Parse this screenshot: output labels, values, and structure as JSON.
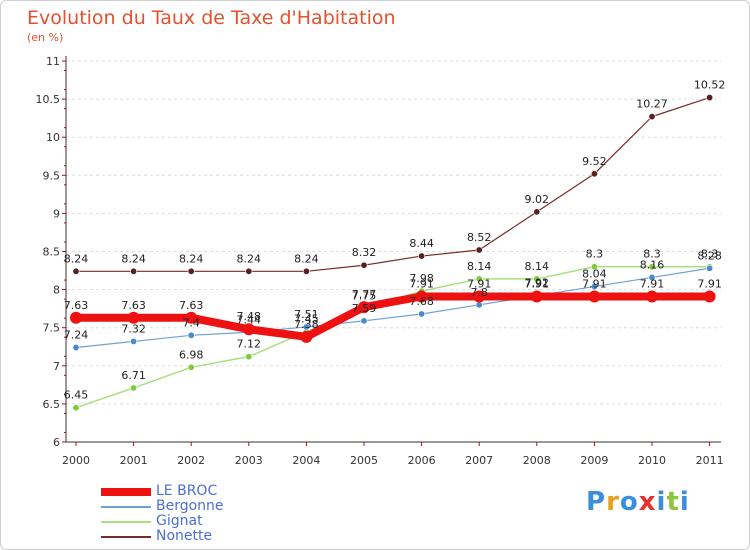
{
  "header": {
    "title": "Evolution du Taux de Taxe d'Habitation",
    "unit": "(en %)"
  },
  "logo": {
    "text": "Proxiti",
    "letters": [
      "P",
      "r",
      "o",
      "x",
      "i",
      "t",
      "i"
    ],
    "colors": [
      "#3a8fd8",
      "#e8a020",
      "#3a8fd8",
      "#e83030",
      "#3a8fd8",
      "#8cc63e",
      "#3a8fd8"
    ]
  },
  "chart_data": {
    "type": "line",
    "x": [
      "2000",
      "2001",
      "2002",
      "2003",
      "2004",
      "2005",
      "2006",
      "2007",
      "2008",
      "2009",
      "2010",
      "2011"
    ],
    "ylim": [
      6,
      11
    ],
    "yticks": [
      "6",
      "6.5",
      "7",
      "7.5",
      "8",
      "8.5",
      "9",
      "9.5",
      "10",
      "10.5",
      "11"
    ],
    "grid": "horizontal dashed",
    "legend_position": "bottom-left",
    "series": [
      {
        "name": "Nonette",
        "color": "#7a2a2a",
        "point_color": "#5a1f1f",
        "width": 1.2,
        "values": [
          8.24,
          8.24,
          8.24,
          8.24,
          8.24,
          8.32,
          8.44,
          8.52,
          9.02,
          9.52,
          10.27,
          10.52
        ],
        "labels": [
          "8.24",
          "8.24",
          "8.24",
          "8.24",
          "8.24",
          "8.32",
          "8.44",
          "8.52",
          "9.02",
          "9.52",
          "10.27",
          "10.52"
        ]
      },
      {
        "name": "Gignat",
        "color": "#a8e080",
        "point_color": "#7ccc3c",
        "width": 1.5,
        "values": [
          6.45,
          6.71,
          6.98,
          7.12,
          7.45,
          7.75,
          7.98,
          8.14,
          8.14,
          8.3,
          8.3,
          8.3
        ],
        "labels": [
          "6.45",
          "6.71",
          "6.98",
          "7.12",
          "7.45",
          "7.75",
          "7.98",
          "8.14",
          "8.14",
          "8.3",
          "8.3",
          "8.3"
        ]
      },
      {
        "name": "Bergonne",
        "color": "#6ea2d6",
        "point_color": "#4a8ad0",
        "width": 1.2,
        "values": [
          7.24,
          7.32,
          7.4,
          7.44,
          7.51,
          7.59,
          7.68,
          7.8,
          7.92,
          8.04,
          8.16,
          8.28
        ],
        "labels": [
          "7.24",
          "7.32",
          "7.4",
          "7.44",
          "7.51",
          "7.59",
          "7.68",
          "7.8",
          "7.92",
          "8.04",
          "8.16",
          "8.28"
        ]
      },
      {
        "name": "LE BROC",
        "color": "#ee1111",
        "point_color": "#ee1111",
        "width": 8,
        "values": [
          7.63,
          7.63,
          7.63,
          7.48,
          7.38,
          7.77,
          7.91,
          7.91,
          7.91,
          7.91,
          7.91,
          7.91
        ],
        "labels": [
          "7.63",
          "7.63",
          "7.63",
          "7.48",
          "7.38",
          "7.77",
          "7.91",
          "7.91",
          "7.91",
          "7.91",
          "7.91",
          "7.91"
        ]
      }
    ]
  },
  "legend": [
    {
      "label": "LE BROC",
      "color": "#ee1111",
      "thickness": 8
    },
    {
      "label": "Bergonne",
      "color": "#6ea2d6",
      "thickness": 2
    },
    {
      "label": "Gignat",
      "color": "#a8e080",
      "thickness": 2
    },
    {
      "label": "Nonette",
      "color": "#7a2a2a",
      "thickness": 2
    }
  ]
}
